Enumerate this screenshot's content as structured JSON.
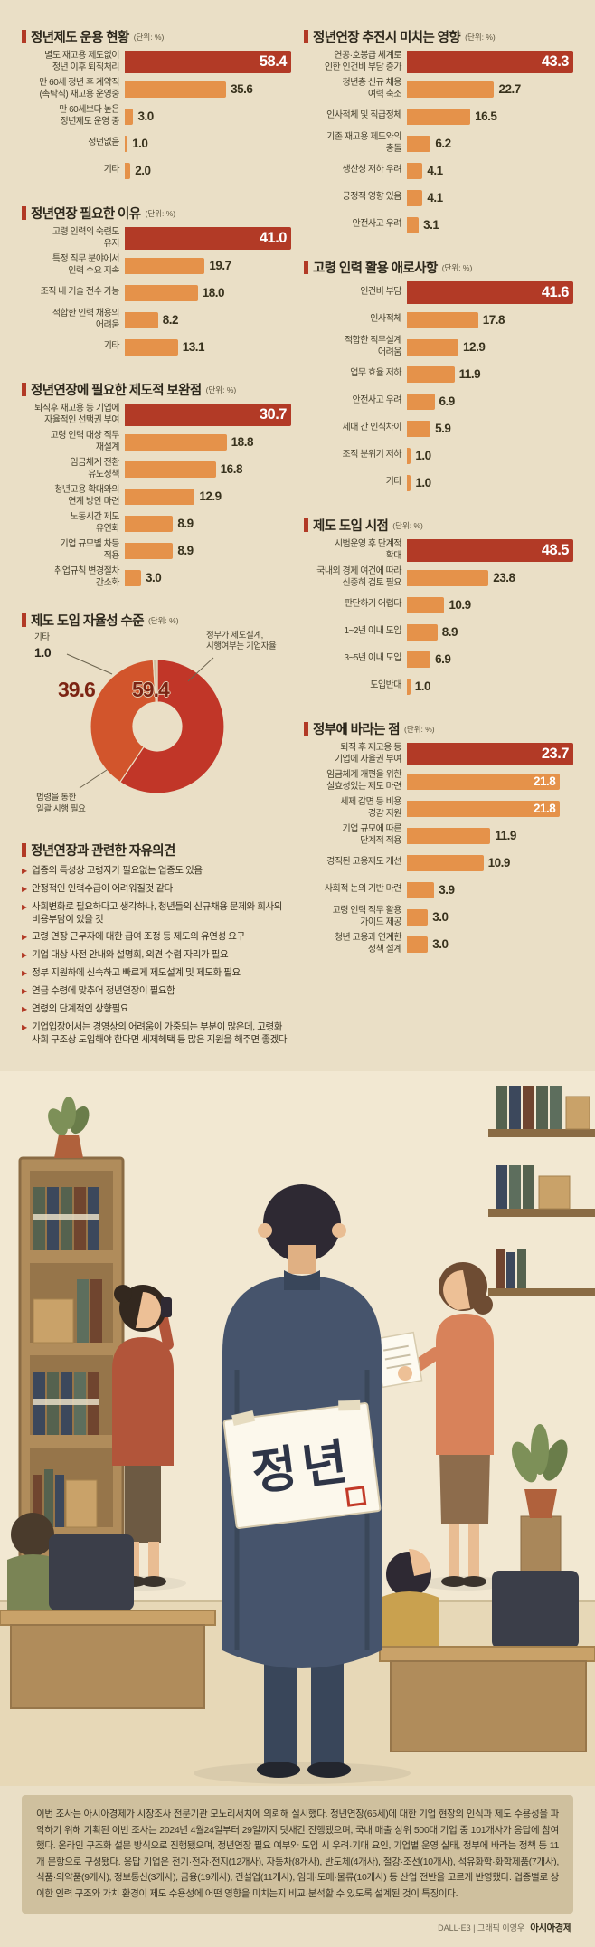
{
  "colors": {
    "background": "#eadfc6",
    "accent_red": "#b23a26",
    "bar_orange": "#e5924a",
    "donut_red": "#c13628",
    "donut_orange": "#d2552c",
    "donut_etc": "#cdbfa0",
    "big_number_red": "#7c2413"
  },
  "chart_data": [
    {
      "id": "operation-status",
      "type": "bar",
      "column": "left",
      "title": "정년제도 운용 현황",
      "unit": "(단위: %)",
      "categories": [
        "별도 재고용 제도없이|정년 이후 퇴직처리",
        "만 60세 정년 후 계약직|(촉탁직) 재고용 운영중",
        "만 60세보다 높은|정년제도 운영 중",
        "정년없음",
        "기타"
      ],
      "values": [
        58.4,
        35.6,
        3.0,
        1.0,
        2.0
      ]
    },
    {
      "id": "reasons-needed",
      "type": "bar",
      "column": "left",
      "title": "정년연장 필요한 이유",
      "unit": "(단위: %)",
      "categories": [
        "고령 인력의 숙련도|유지",
        "특정 직무 분야에서|인력 수요 지속",
        "조직 내 기술 전수 가능",
        "적합한 인력 채용의|어려움",
        "기타"
      ],
      "values": [
        41.0,
        19.7,
        18.0,
        8.2,
        13.1
      ]
    },
    {
      "id": "institutional-complements",
      "type": "bar",
      "column": "left",
      "title": "정년연장에 필요한 제도적 보완점",
      "unit": "(단위: %)",
      "categories": [
        "퇴직후 재고용 등 기업에|자율적인 선택권 부여",
        "고령 인력 대상 직무|재설계",
        "임금체계 전환|유도정책",
        "청년고용 확대와의|연계 방안 마련",
        "노동시간 제도|유연화",
        "기업 규모별 차등|적용",
        "취업규칙 변경절차|간소화"
      ],
      "values": [
        30.7,
        18.8,
        16.8,
        12.9,
        8.9,
        8.9,
        3.0
      ]
    },
    {
      "id": "autonomy-level",
      "type": "donut",
      "column": "left",
      "title": "제도 도입 자율성 수준",
      "unit": "(단위: %)",
      "slices": [
        {
          "label": "정부가 제도설계,|시행여부는 기업자율",
          "value": 59.4
        },
        {
          "label": "법령을 통한|일괄 시행 필요",
          "value": 39.6
        },
        {
          "label": "기타",
          "value": 1.0
        }
      ]
    },
    {
      "id": "extension-impacts",
      "type": "bar",
      "column": "right",
      "title": "정년연장 추진시 미치는 영향",
      "unit": "(단위: %)",
      "categories": [
        "연공·호봉급 체계로|인한 인건비 부담 증가",
        "청년층 신규 채용|여력 축소",
        "인사적체 및 직급정체",
        "기존 재고용 제도와의|충돌",
        "생산성 저하 우려",
        "긍정적 영향 있음",
        "안전사고 우려"
      ],
      "values": [
        43.3,
        22.7,
        16.5,
        6.2,
        4.1,
        4.1,
        3.1
      ]
    },
    {
      "id": "senior-difficulties",
      "type": "bar",
      "column": "right",
      "title": "고령 인력 활용 애로사항",
      "unit": "(단위: %)",
      "categories": [
        "인건비 부담",
        "인사적체",
        "적합한 직무설계|어려움",
        "업무 효율 저하",
        "안전사고 우려",
        "세대 간 인식차이",
        "조직 분위기 저하",
        "기타"
      ],
      "values": [
        41.6,
        17.8,
        12.9,
        11.9,
        6.9,
        5.9,
        1.0,
        1.0
      ]
    },
    {
      "id": "adoption-timing",
      "type": "bar",
      "column": "right",
      "title": "제도 도입 시점",
      "unit": "(단위: %)",
      "categories": [
        "시범운영 후 단계적|확대",
        "국내외 경제 여건에 따라|신중히 검토 필요",
        "판단하기 어렵다",
        "1~2년 이내 도입",
        "3~5년 이내 도입",
        "도입반대"
      ],
      "values": [
        48.5,
        23.8,
        10.9,
        8.9,
        6.9,
        1.0
      ]
    },
    {
      "id": "gov-requests",
      "type": "bar",
      "column": "right",
      "title": "정부에 바라는 점",
      "unit": "(단위: %)",
      "categories": [
        "퇴직 후 재고용 등|기업에 자율권 부여",
        "임금체계 개편을 위한|실효성있는 제도 마련",
        "세제 감면 등 비용|경감 지원",
        "기업 규모에 따른|단계적 적용",
        "경직된 고용제도 개선",
        "사회적 논의 기반 마련",
        "고령 인력 직무 활용|가이드 제공",
        "청년 고용과 연계한|정책 설계"
      ],
      "values": [
        23.7,
        21.8,
        21.8,
        11.9,
        10.9,
        3.9,
        3.0,
        3.0
      ]
    }
  ],
  "opinions": {
    "title": "정년연장과 관련한 자유의견",
    "bullet": "▶",
    "items": [
      "업종의 특성상 고령자가 필요없는 업종도 있음",
      "안정적인 인력수급이 어려워질것 같다",
      "사회변화로 필요하다고 생각하나, 청년들의 신규채용 문제와 회사의 비용부담이 있을 것",
      "고령 연장 근무자에 대한 급여 조정 등 제도의 유연성 요구",
      "기업 대상 사전 안내와 설명회, 의견 수렴 자리가 필요",
      "정부 지원하에 신속하고 빠르게 제도설계 및 제도화 필요",
      "연금 수령에 맞추어 정년연장이 필요함",
      "연령의 단계적인 상향필요",
      "기업입장에서는 경영상의 어려움이 가중되는 부분이 많은데, 고령화 사회 구조상 도입해야 한다면 세제혜택 등 많은 지원을 해주면 좋겠다"
    ]
  },
  "illustration": {
    "sign_text": "정년"
  },
  "footer": {
    "body": "이번 조사는 아시아경제가 시장조사 전문기관 모노리서치에 의뢰해 실시했다. 정년연장(65세)에 대한 기업 현장의 인식과 제도 수용성을 파악하기 위해 기획된 이번 조사는 2024년 4월24일부터 29일까지 닷새간 진행됐으며, 국내 매출 상위 500대 기업 중 101개사가 응답에 참여했다. 온라인 구조화 설문 방식으로 진행됐으며, 정년연장 필요 여부와 도입 시 우려·기대 요인, 기업별 운영 실태, 정부에 바라는 정책 등 11개 문항으로 구성됐다. 응답 기업은 전기·전자·전지(12개사), 자동차(8개사), 반도체(4개사), 철강·조선(10개사), 석유화학·화학제품(7개사), 식품·의약품(9개사), 정보통신(3개사), 금융(19개사), 건설업(11개사), 임대·도매·물류(10개사) 등 산업 전반을 고르게 반영했다. 업종별로 상이한 인력 구조와 가치 환경이 제도 수용성에 어떤 영향을 미치는지 비교·분석할 수 있도록 설계된 것이 특징이다.",
    "credit": "DALL·E3 | 그래픽 이영우",
    "brand": "아시아경제"
  }
}
